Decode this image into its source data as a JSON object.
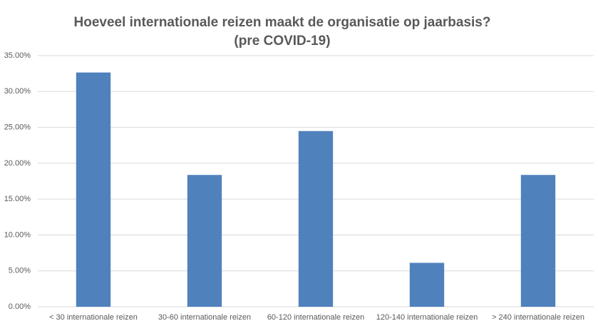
{
  "chart_data": {
    "type": "bar",
    "title": "Hoeveel internationale reizen maakt de organisatie op jaarbasis?",
    "subtitle": "(pre COVID-19)",
    "categories": [
      "< 30 internationale reizen",
      "30-60 internationale reizen",
      "60-120 internationale reizen",
      "120-140 internationale reizen",
      "> 240 internationale reizen"
    ],
    "values": [
      32.65,
      18.37,
      24.49,
      6.12,
      18.37
    ],
    "color": "#4f81bd",
    "ylim": [
      0,
      35
    ],
    "yticks": [
      {
        "value": 0,
        "label": "0.00%"
      },
      {
        "value": 5,
        "label": "5.00%"
      },
      {
        "value": 10,
        "label": "10.00%"
      },
      {
        "value": 15,
        "label": "15.00%"
      },
      {
        "value": 20,
        "label": "20.00%"
      },
      {
        "value": 25,
        "label": "25.00%"
      },
      {
        "value": 30,
        "label": "30.00%"
      },
      {
        "value": 35,
        "label": "35.00%"
      }
    ],
    "grid": true
  }
}
